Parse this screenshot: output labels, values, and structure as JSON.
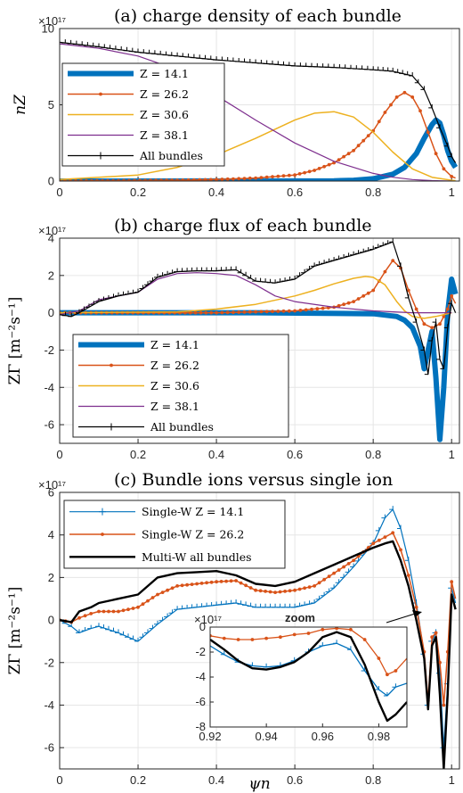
{
  "chart_data": [
    {
      "type": "line",
      "title": "(a) charge density of each bundle",
      "ylabel": "nZ",
      "exponent": "×10¹⁷",
      "xlim": [
        0,
        1.02
      ],
      "ylim": [
        0,
        10
      ],
      "xticks": [
        "0",
        "0.2",
        "0.4",
        "0.6",
        "0.8",
        "1"
      ],
      "yticks": [
        "0",
        "5",
        "10"
      ],
      "grid": true,
      "legend": "left",
      "series": [
        {
          "name": "Z = 14.1",
          "color": "#0072BD",
          "marker": "none",
          "width": 6,
          "x": [
            0,
            0.7,
            0.75,
            0.8,
            0.85,
            0.88,
            0.91,
            0.93,
            0.95,
            0.96,
            0.97,
            0.98,
            0.99,
            1.0,
            1.01
          ],
          "y": [
            0,
            0.02,
            0.05,
            0.15,
            0.45,
            0.9,
            1.8,
            2.8,
            3.7,
            4.0,
            3.8,
            3.0,
            2.0,
            1.3,
            0.9
          ]
        },
        {
          "name": "Z = 26.2",
          "color": "#D95319",
          "marker": "dot",
          "width": 1.5,
          "x": [
            0,
            0.3,
            0.4,
            0.5,
            0.6,
            0.65,
            0.7,
            0.75,
            0.8,
            0.83,
            0.86,
            0.88,
            0.9,
            0.92,
            0.94,
            0.96,
            0.98,
            1.0,
            1.01
          ],
          "y": [
            0,
            0.05,
            0.1,
            0.2,
            0.4,
            0.7,
            1.2,
            2.0,
            3.3,
            4.5,
            5.5,
            5.8,
            5.5,
            4.6,
            3.2,
            1.8,
            0.8,
            0.3,
            0.2
          ]
        },
        {
          "name": "Z = 30.6",
          "color": "#EDB120",
          "marker": "none",
          "width": 1.5,
          "x": [
            0,
            0.2,
            0.3,
            0.4,
            0.5,
            0.6,
            0.65,
            0.7,
            0.75,
            0.8,
            0.85,
            0.9,
            0.95,
            1.0,
            1.01
          ],
          "y": [
            0.1,
            0.4,
            0.9,
            1.7,
            2.8,
            4.0,
            4.45,
            4.55,
            4.2,
            3.2,
            1.9,
            0.8,
            0.25,
            0.05,
            0.03
          ]
        },
        {
          "name": "Z = 38.1",
          "color": "#7E2F8E",
          "marker": "none",
          "width": 1.2,
          "x": [
            0,
            0.1,
            0.2,
            0.3,
            0.4,
            0.5,
            0.6,
            0.7,
            0.8,
            0.85,
            0.9,
            0.95,
            1.0
          ],
          "y": [
            9.0,
            8.7,
            8.2,
            7.3,
            5.6,
            4.0,
            2.5,
            1.3,
            0.5,
            0.25,
            0.1,
            0.03,
            0.0
          ]
        },
        {
          "name": "All bundles",
          "color": "#000000",
          "marker": "plus",
          "width": 1.2,
          "x": [
            0,
            0.1,
            0.2,
            0.3,
            0.4,
            0.5,
            0.6,
            0.7,
            0.8,
            0.85,
            0.9,
            0.93,
            0.95,
            0.97,
            0.99,
            1.0,
            1.01
          ],
          "y": [
            9.1,
            8.8,
            8.45,
            8.2,
            7.95,
            7.75,
            7.55,
            7.45,
            7.3,
            7.2,
            6.9,
            6.0,
            4.8,
            3.5,
            2.3,
            1.6,
            1.2
          ]
        }
      ]
    },
    {
      "type": "line",
      "title": "(b) charge flux of each bundle",
      "ylabel": "ZΓ [m⁻²s⁻¹]",
      "exponent": "×10¹⁷",
      "xlim": [
        0,
        1.02
      ],
      "ylim": [
        -7,
        4
      ],
      "xticks": [
        "0",
        "0.2",
        "0.4",
        "0.6",
        "0.8",
        "1"
      ],
      "yticks": [
        "-6",
        "-4",
        "-2",
        "0",
        "2",
        "4"
      ],
      "grid": true,
      "legend": "bottom-left",
      "series": [
        {
          "name": "Z = 14.1",
          "color": "#0072BD",
          "marker": "none",
          "width": 6,
          "x": [
            0,
            0.5,
            0.8,
            0.86,
            0.88,
            0.9,
            0.92,
            0.93,
            0.94,
            0.95,
            0.96,
            0.97,
            0.98,
            0.99,
            1.0,
            1.01
          ],
          "y": [
            0,
            0,
            -0.05,
            -0.2,
            -0.4,
            -0.8,
            -1.8,
            -3.0,
            -2.0,
            -1.0,
            -3.5,
            -6.8,
            -4.0,
            0.0,
            1.8,
            1.0
          ]
        },
        {
          "name": "Z = 26.2",
          "color": "#D95319",
          "marker": "dot",
          "width": 1.5,
          "x": [
            0,
            0.2,
            0.4,
            0.5,
            0.6,
            0.7,
            0.75,
            0.8,
            0.83,
            0.85,
            0.87,
            0.89,
            0.91,
            0.93,
            0.95,
            0.97,
            0.98,
            0.99,
            1.0,
            1.01
          ],
          "y": [
            0,
            0,
            0.0,
            0.05,
            0.1,
            0.3,
            0.6,
            1.2,
            2.2,
            2.8,
            2.4,
            1.2,
            0.2,
            -0.6,
            -0.8,
            -0.6,
            -0.2,
            0.2,
            0.9,
            0.5
          ]
        },
        {
          "name": "Z = 30.6",
          "color": "#EDB120",
          "marker": "none",
          "width": 1.5,
          "x": [
            0,
            0.3,
            0.4,
            0.5,
            0.6,
            0.65,
            0.7,
            0.75,
            0.78,
            0.8,
            0.83,
            0.86,
            0.88,
            0.9,
            0.93,
            0.96,
            1.0
          ],
          "y": [
            0,
            0.05,
            0.2,
            0.45,
            0.9,
            1.2,
            1.55,
            1.85,
            1.95,
            1.9,
            1.5,
            0.6,
            0.1,
            -0.2,
            -0.3,
            -0.2,
            0
          ]
        },
        {
          "name": "Z = 38.1",
          "color": "#7E2F8E",
          "marker": "none",
          "width": 1.2,
          "x": [
            0,
            0.05,
            0.1,
            0.15,
            0.2,
            0.25,
            0.3,
            0.35,
            0.4,
            0.45,
            0.5,
            0.55,
            0.6,
            0.7,
            0.8,
            0.9,
            1.0
          ],
          "y": [
            -0.1,
            0.1,
            0.7,
            0.9,
            1.1,
            1.8,
            2.1,
            2.15,
            2.1,
            2.0,
            1.5,
            0.9,
            0.6,
            0.3,
            0.1,
            0.0,
            0.0
          ]
        },
        {
          "name": "All bundles",
          "color": "#000000",
          "marker": "plus",
          "width": 1.2,
          "x": [
            0,
            0.03,
            0.05,
            0.1,
            0.15,
            0.2,
            0.25,
            0.3,
            0.35,
            0.4,
            0.45,
            0.5,
            0.55,
            0.6,
            0.65,
            0.7,
            0.75,
            0.8,
            0.85,
            0.87,
            0.89,
            0.91,
            0.93,
            0.94,
            0.95,
            0.96,
            0.97,
            0.98,
            0.99,
            1.0,
            1.01
          ],
          "y": [
            -0.1,
            -0.2,
            0.0,
            0.6,
            0.9,
            1.1,
            1.9,
            2.2,
            2.25,
            2.25,
            2.3,
            1.7,
            1.6,
            1.8,
            2.5,
            2.8,
            3.1,
            3.4,
            3.8,
            2.5,
            0.8,
            -0.5,
            -2.0,
            -3.3,
            -1.5,
            -0.5,
            -2.5,
            -3.0,
            -0.8,
            0.5,
            0.0
          ]
        }
      ]
    },
    {
      "type": "line",
      "title": "(c) Bundle ions versus single ion",
      "ylabel": "ZΓ [m⁻²s⁻¹]",
      "xlabel": "ψn",
      "exponent": "×10¹⁷",
      "xlim": [
        0,
        1.02
      ],
      "ylim": [
        -7,
        6
      ],
      "xticks": [
        "0",
        "0.2",
        "0.4",
        "0.6",
        "0.8",
        "1"
      ],
      "yticks": [
        "-6",
        "-4",
        "-2",
        "0",
        "2",
        "4",
        "6"
      ],
      "grid": true,
      "legend": "top-left",
      "series": [
        {
          "name": "Single-W Z = 14.1",
          "color": "#0072BD",
          "marker": "plus",
          "width": 1.2,
          "x": [
            0,
            0.03,
            0.05,
            0.08,
            0.1,
            0.15,
            0.2,
            0.25,
            0.3,
            0.35,
            0.4,
            0.45,
            0.5,
            0.55,
            0.6,
            0.65,
            0.7,
            0.75,
            0.8,
            0.83,
            0.85,
            0.87,
            0.89,
            0.91,
            0.93,
            0.94,
            0.95,
            0.96,
            0.97,
            0.98,
            0.99,
            1.0,
            1.01
          ],
          "y": [
            0,
            -0.3,
            -0.6,
            -0.4,
            -0.3,
            -0.6,
            -1.0,
            -0.2,
            0.5,
            0.6,
            0.7,
            0.8,
            0.6,
            0.6,
            0.6,
            0.8,
            1.5,
            2.5,
            3.6,
            4.8,
            5.2,
            4.3,
            2.8,
            0.8,
            -1.6,
            -4.0,
            -1.0,
            -0.6,
            -2.5,
            -6.0,
            -3.0,
            1.5,
            0.8
          ]
        },
        {
          "name": "Single-W Z = 26.2",
          "color": "#D95319",
          "marker": "dot",
          "width": 1.5,
          "x": [
            0,
            0.03,
            0.05,
            0.08,
            0.1,
            0.15,
            0.2,
            0.25,
            0.3,
            0.35,
            0.4,
            0.45,
            0.5,
            0.55,
            0.6,
            0.65,
            0.7,
            0.75,
            0.8,
            0.83,
            0.85,
            0.87,
            0.89,
            0.91,
            0.93,
            0.94,
            0.95,
            0.96,
            0.97,
            0.98,
            0.99,
            1.0,
            1.01
          ],
          "y": [
            0,
            -0.1,
            0.1,
            0.3,
            0.4,
            0.4,
            0.6,
            1.2,
            1.6,
            1.7,
            1.8,
            1.85,
            1.4,
            1.3,
            1.4,
            1.6,
            2.2,
            2.8,
            3.6,
            3.9,
            4.1,
            3.3,
            2.1,
            0.6,
            -1.5,
            -3.8,
            -0.8,
            -0.6,
            -2.0,
            -4.0,
            -1.5,
            1.8,
            1.0
          ]
        },
        {
          "name": "Multi-W all bundles",
          "color": "#000000",
          "marker": "none",
          "width": 2.4,
          "x": [
            0,
            0.03,
            0.05,
            0.08,
            0.1,
            0.15,
            0.2,
            0.25,
            0.3,
            0.35,
            0.4,
            0.45,
            0.5,
            0.55,
            0.6,
            0.65,
            0.7,
            0.75,
            0.8,
            0.83,
            0.85,
            0.87,
            0.89,
            0.91,
            0.93,
            0.94,
            0.95,
            0.96,
            0.97,
            0.98,
            0.99,
            1.0,
            1.01
          ],
          "y": [
            0,
            -0.1,
            0.4,
            0.6,
            0.8,
            1.0,
            1.2,
            2.0,
            2.2,
            2.25,
            2.3,
            2.1,
            1.7,
            1.6,
            1.8,
            2.2,
            2.6,
            3.0,
            3.4,
            3.6,
            3.7,
            2.8,
            1.6,
            0.0,
            -1.8,
            -4.2,
            -1.2,
            -0.8,
            -3.5,
            -7.0,
            -3.5,
            1.2,
            0.5
          ]
        }
      ],
      "inset": {
        "title": "zoom",
        "exponent": "×10¹⁷",
        "xlim": [
          0.92,
          0.99
        ],
        "ylim": [
          -8,
          0
        ],
        "xticks": [
          "0.92",
          "0.94",
          "0.96",
          "0.98"
        ],
        "yticks": [
          "-8",
          "-6",
          "-4",
          "-2",
          "0"
        ],
        "series": [
          {
            "name": "Single-W Z = 14.1",
            "color": "#0072BD",
            "marker": "plus",
            "x": [
              0.92,
              0.925,
              0.93,
              0.935,
              0.94,
              0.945,
              0.95,
              0.955,
              0.96,
              0.965,
              0.97,
              0.975,
              0.98,
              0.983,
              0.986,
              0.99
            ],
            "y": [
              -1.5,
              -2.2,
              -2.8,
              -3.1,
              -3.2,
              -3.1,
              -2.7,
              -2.0,
              -1.5,
              -1.3,
              -1.8,
              -3.5,
              -5.0,
              -5.5,
              -4.8,
              -4.5
            ]
          },
          {
            "name": "Single-W Z = 26.2",
            "color": "#D95319",
            "marker": "dot",
            "x": [
              0.92,
              0.925,
              0.93,
              0.935,
              0.94,
              0.945,
              0.95,
              0.955,
              0.96,
              0.965,
              0.97,
              0.975,
              0.98,
              0.983,
              0.986,
              0.99
            ],
            "y": [
              -0.7,
              -0.9,
              -1.0,
              -1.0,
              -0.9,
              -0.8,
              -0.6,
              -0.5,
              -0.2,
              -0.1,
              -0.2,
              -1.0,
              -2.5,
              -3.8,
              -3.5,
              -2.5
            ]
          },
          {
            "name": "Multi-W all bundles",
            "color": "#000000",
            "marker": "none",
            "x": [
              0.92,
              0.925,
              0.93,
              0.935,
              0.94,
              0.945,
              0.95,
              0.955,
              0.96,
              0.965,
              0.97,
              0.975,
              0.98,
              0.983,
              0.986,
              0.99
            ],
            "y": [
              -1.0,
              -1.8,
              -2.7,
              -3.3,
              -3.4,
              -3.2,
              -2.8,
              -2.0,
              -0.8,
              -0.4,
              -0.8,
              -3.0,
              -6.0,
              -7.5,
              -7.0,
              -6.0
            ]
          }
        ]
      }
    }
  ]
}
